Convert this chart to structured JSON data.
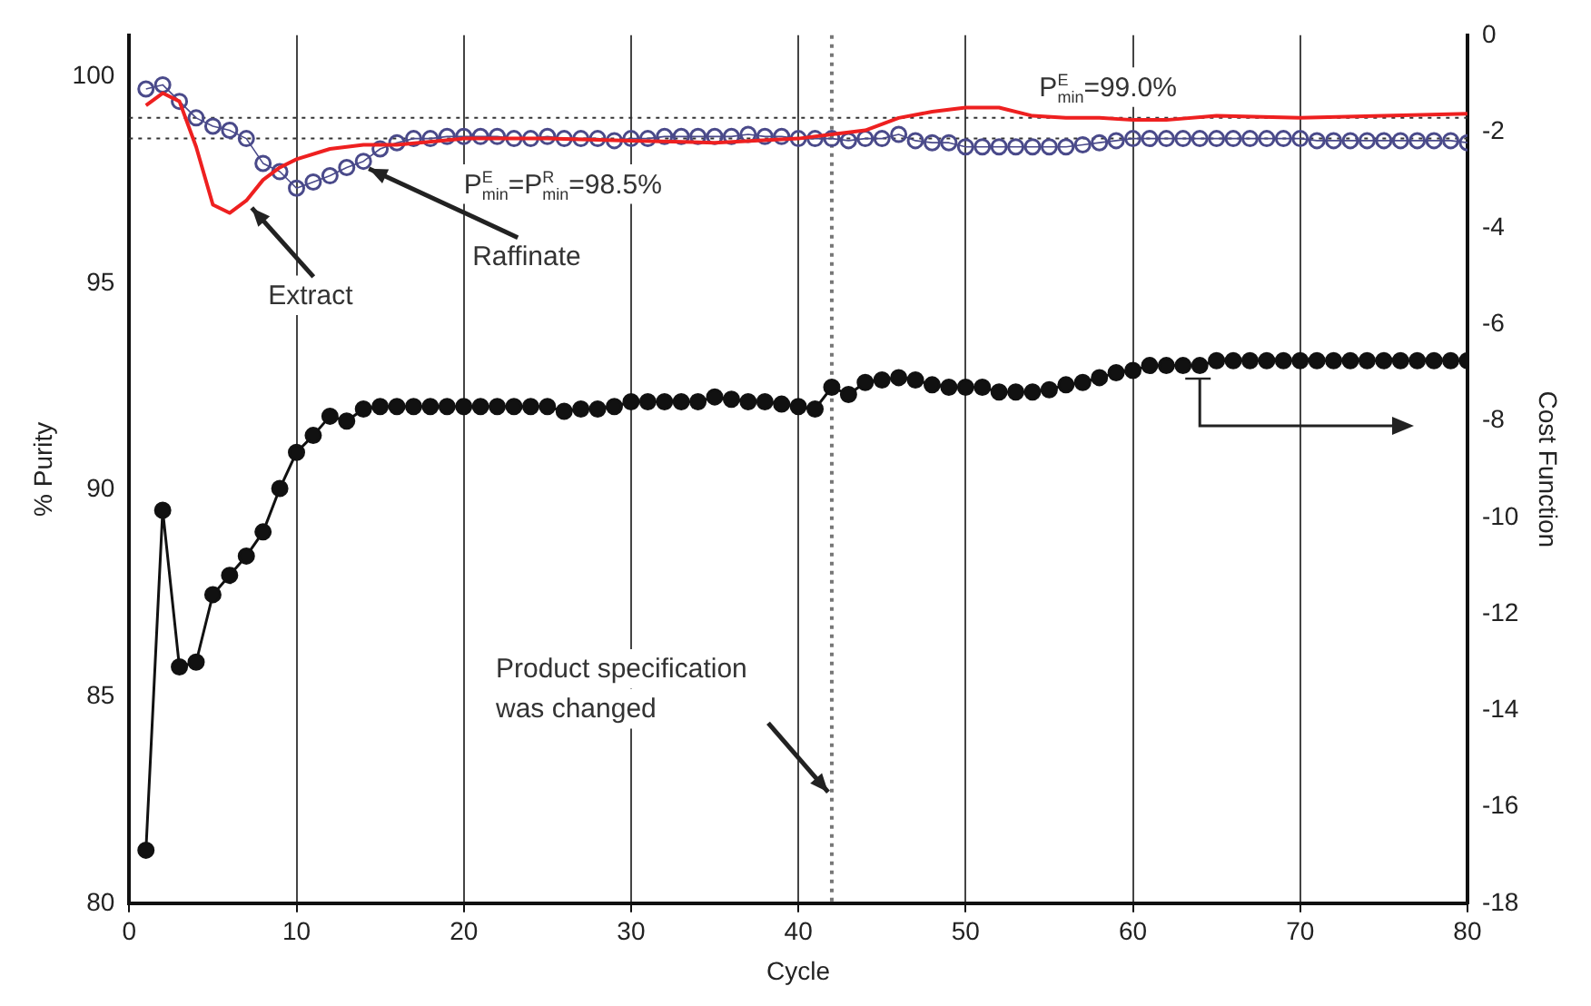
{
  "chart_data": {
    "type": "line",
    "xlabel": "Cycle",
    "ylabel": "% Purity",
    "y2label": "Cost Function",
    "xlim": [
      0,
      80
    ],
    "xticks": [
      0,
      10,
      20,
      30,
      40,
      50,
      60,
      70,
      80
    ],
    "ylim": [
      80,
      101
    ],
    "yticks": [
      80,
      85,
      90,
      95,
      100
    ],
    "y2lim": [
      -18,
      0
    ],
    "y2ticks": [
      -18,
      -16,
      -14,
      -12,
      -10,
      -8,
      -6,
      -4,
      -2,
      0
    ],
    "grid": "x",
    "series": [
      {
        "name": "Extract",
        "color": "#ee2020",
        "marker": "none",
        "x": [
          1,
          2,
          3,
          4,
          5,
          6,
          7,
          8,
          9,
          10,
          12,
          14,
          16,
          20,
          25,
          30,
          35,
          40,
          42,
          44,
          46,
          48,
          50,
          52,
          54,
          56,
          58,
          60,
          62,
          65,
          70,
          75,
          80
        ],
        "values": [
          99.3,
          99.6,
          99.4,
          98.3,
          96.9,
          96.7,
          97.0,
          97.5,
          97.8,
          98.0,
          98.25,
          98.35,
          98.35,
          98.5,
          98.5,
          98.45,
          98.4,
          98.5,
          98.6,
          98.7,
          99.0,
          99.15,
          99.25,
          99.25,
          99.05,
          99.0,
          99.0,
          98.95,
          98.95,
          99.05,
          99.0,
          99.05,
          99.1
        ]
      },
      {
        "name": "Raffinate",
        "color": "#4a4a8a",
        "marker": "circle",
        "x": [
          1,
          2,
          3,
          4,
          5,
          6,
          7,
          8,
          9,
          10,
          11,
          12,
          13,
          14,
          15,
          16,
          17,
          18,
          19,
          20,
          21,
          22,
          23,
          24,
          25,
          26,
          27,
          28,
          29,
          30,
          31,
          32,
          33,
          34,
          35,
          36,
          37,
          38,
          39,
          40,
          41,
          42,
          43,
          44,
          45,
          46,
          47,
          48,
          49,
          50,
          51,
          52,
          53,
          54,
          55,
          56,
          57,
          58,
          59,
          60,
          61,
          62,
          63,
          64,
          65,
          66,
          67,
          68,
          69,
          70,
          71,
          72,
          73,
          74,
          75,
          76,
          77,
          78,
          79,
          80
        ],
        "values": [
          99.7,
          99.8,
          99.4,
          99.0,
          98.8,
          98.7,
          98.5,
          97.9,
          97.7,
          97.3,
          97.45,
          97.6,
          97.8,
          97.95,
          98.25,
          98.4,
          98.5,
          98.5,
          98.55,
          98.55,
          98.55,
          98.55,
          98.5,
          98.5,
          98.55,
          98.5,
          98.5,
          98.5,
          98.45,
          98.5,
          98.5,
          98.55,
          98.55,
          98.55,
          98.55,
          98.55,
          98.6,
          98.55,
          98.55,
          98.5,
          98.5,
          98.5,
          98.45,
          98.5,
          98.5,
          98.6,
          98.45,
          98.4,
          98.4,
          98.3,
          98.3,
          98.3,
          98.3,
          98.3,
          98.3,
          98.3,
          98.35,
          98.4,
          98.45,
          98.5,
          98.5,
          98.5,
          98.5,
          98.5,
          98.5,
          98.5,
          98.5,
          98.5,
          98.5,
          98.5,
          98.45,
          98.45,
          98.45,
          98.45,
          98.45,
          98.45,
          98.45,
          98.45,
          98.45,
          98.4
        ]
      },
      {
        "color": "#111111",
        "marker": "circle",
        "axis": "y2",
        "x": [
          1,
          2,
          3,
          4,
          5,
          6,
          7,
          8,
          9,
          10,
          11,
          12,
          13,
          14,
          15,
          16,
          17,
          18,
          19,
          20,
          21,
          22,
          23,
          24,
          25,
          26,
          27,
          28,
          29,
          30,
          31,
          32,
          33,
          34,
          35,
          36,
          37,
          38,
          39,
          40,
          41,
          42,
          43,
          44,
          45,
          46,
          47,
          48,
          49,
          50,
          51,
          52,
          53,
          54,
          55,
          56,
          57,
          58,
          59,
          60,
          61,
          62,
          63,
          64,
          65,
          66,
          67,
          68,
          69,
          70,
          71,
          72,
          73,
          74,
          75,
          76,
          77,
          78,
          79,
          80
        ],
        "values": [
          -16.9,
          -9.85,
          -13.1,
          -13.0,
          -11.6,
          -11.2,
          -10.8,
          -10.3,
          -9.4,
          -8.65,
          -8.3,
          -7.9,
          -8.0,
          -7.75,
          -7.7,
          -7.7,
          -7.7,
          -7.7,
          -7.7,
          -7.7,
          -7.7,
          -7.7,
          -7.7,
          -7.7,
          -7.7,
          -7.8,
          -7.75,
          -7.75,
          -7.7,
          -7.6,
          -7.6,
          -7.6,
          -7.6,
          -7.6,
          -7.5,
          -7.55,
          -7.6,
          -7.6,
          -7.65,
          -7.7,
          -7.75,
          -7.3,
          -7.45,
          -7.2,
          -7.15,
          -7.1,
          -7.15,
          -7.25,
          -7.3,
          -7.3,
          -7.3,
          -7.4,
          -7.4,
          -7.4,
          -7.35,
          -7.25,
          -7.2,
          -7.1,
          -7.0,
          -6.95,
          -6.85,
          -6.85,
          -6.85,
          -6.85,
          -6.75,
          -6.75,
          -6.75,
          -6.75,
          -6.75,
          -6.75,
          -6.75,
          -6.75,
          -6.75,
          -6.75,
          -6.75,
          -6.75,
          -6.75,
          -6.75,
          -6.75,
          -6.75
        ]
      }
    ],
    "ref_lines": [
      {
        "axis": "y",
        "value": 99.0,
        "label": "P$^{E}$$_{min}$=99.0%",
        "line_style": "dotted",
        "color": "#333333"
      },
      {
        "axis": "y",
        "value": 98.5,
        "label": "P$^{E}$$_{min}$=P$^{R}$$_{min}$=98.5%",
        "line_style": "dotted",
        "color": "#333333"
      },
      {
        "axis": "x",
        "value": 42,
        "line_style": "dotted",
        "color": "#777777"
      }
    ],
    "annotations": [
      {
        "text": "Product specification\nwas changed",
        "x": 42,
        "y": 82.6
      }
    ]
  }
}
